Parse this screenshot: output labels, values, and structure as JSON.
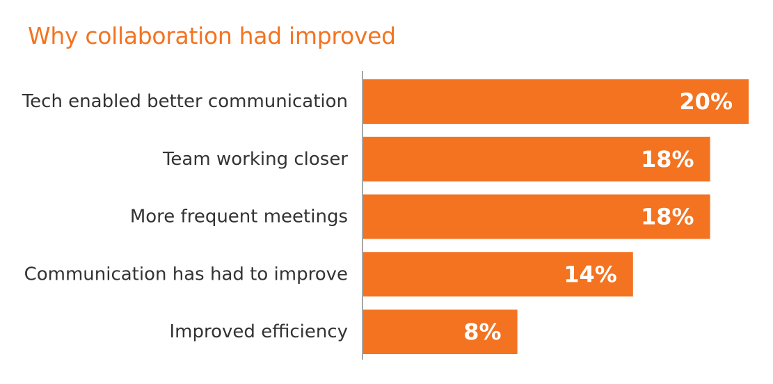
{
  "colors": {
    "bar": "#f37321",
    "title": "#f37321",
    "axis": "#a6a6a6",
    "label": "#333333",
    "value_text": "#ffffff"
  },
  "chart_data": {
    "type": "bar",
    "orientation": "horizontal",
    "title": "Why collaboration had improved",
    "xlabel": "",
    "ylabel": "",
    "categories": [
      "Tech enabled better communication",
      "Team working closer",
      "More frequent meetings",
      "Communication has had to improve",
      "Improved efficiency"
    ],
    "values": [
      20,
      18,
      18,
      14,
      8
    ],
    "value_labels": [
      "20%",
      "18%",
      "18%",
      "14%",
      "8%"
    ],
    "unit": "%",
    "xlim": [
      0,
      20
    ],
    "grid": false,
    "legend": "none"
  }
}
